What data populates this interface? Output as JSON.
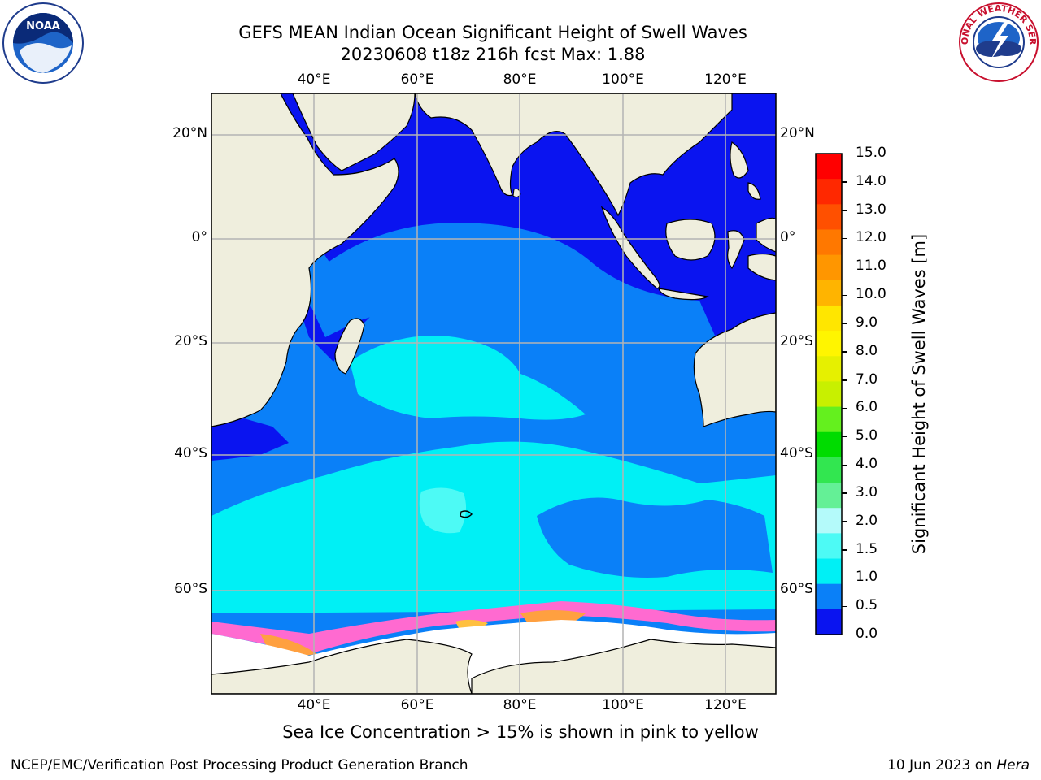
{
  "title": {
    "line1": "GEFS MEAN Indian Ocean Significant Height of Swell Waves",
    "line2": "20230608 t18z 216h fcst   Max: 1.88"
  },
  "map": {
    "lon_ticks": [
      "40°E",
      "60°E",
      "80°E",
      "100°E",
      "120°E"
    ],
    "lat_ticks_left": [
      "20°N",
      "0°",
      "20°S",
      "40°S",
      "60°S"
    ],
    "lat_ticks_right": [
      "20°N",
      "0°",
      "20°S",
      "40°S",
      "60°S"
    ],
    "colors": {
      "land": "#efeedd",
      "zone_0_05": "#0a14f0",
      "zone_05_10": "#0a80f8",
      "zone_10_15": "#00f0f5",
      "zone_15_20": "#4dfaf5",
      "ice_pink": "#ff6ad0",
      "ice_yellow": "#ffc040",
      "ice_orange": "#ffa040",
      "grid": "#b4b4b4"
    }
  },
  "colorbar": {
    "label": "Significant Height of Swell Waves [m]",
    "ticks": [
      "15.0",
      "14.0",
      "13.0",
      "12.0",
      "11.0",
      "10.0",
      "9.0",
      "8.0",
      "7.0",
      "6.0",
      "5.0",
      "4.0",
      "3.0",
      "2.0",
      "1.5",
      "1.0",
      "0.5",
      "0.0"
    ],
    "colors": [
      "#ff0000",
      "#ff2800",
      "#ff5000",
      "#ff7800",
      "#ff9600",
      "#ffb400",
      "#ffe600",
      "#fff500",
      "#e6f000",
      "#c8f000",
      "#64f01e",
      "#00dc00",
      "#32e650",
      "#64f096",
      "#b4fafa",
      "#4dfaf5",
      "#00f0f5",
      "#0a80f8",
      "#0a14f0"
    ]
  },
  "caption": "Sea Ice Concentration > 15% is shown in pink to yellow",
  "credit": "NCEP/EMC/Verification Post Processing Product Generation Branch",
  "stamp": {
    "date": "10 Jun 2023 on ",
    "host": "Hera"
  },
  "logos": {
    "left": "NOAA",
    "right": "NATIONAL WEATHER SERVICE"
  }
}
